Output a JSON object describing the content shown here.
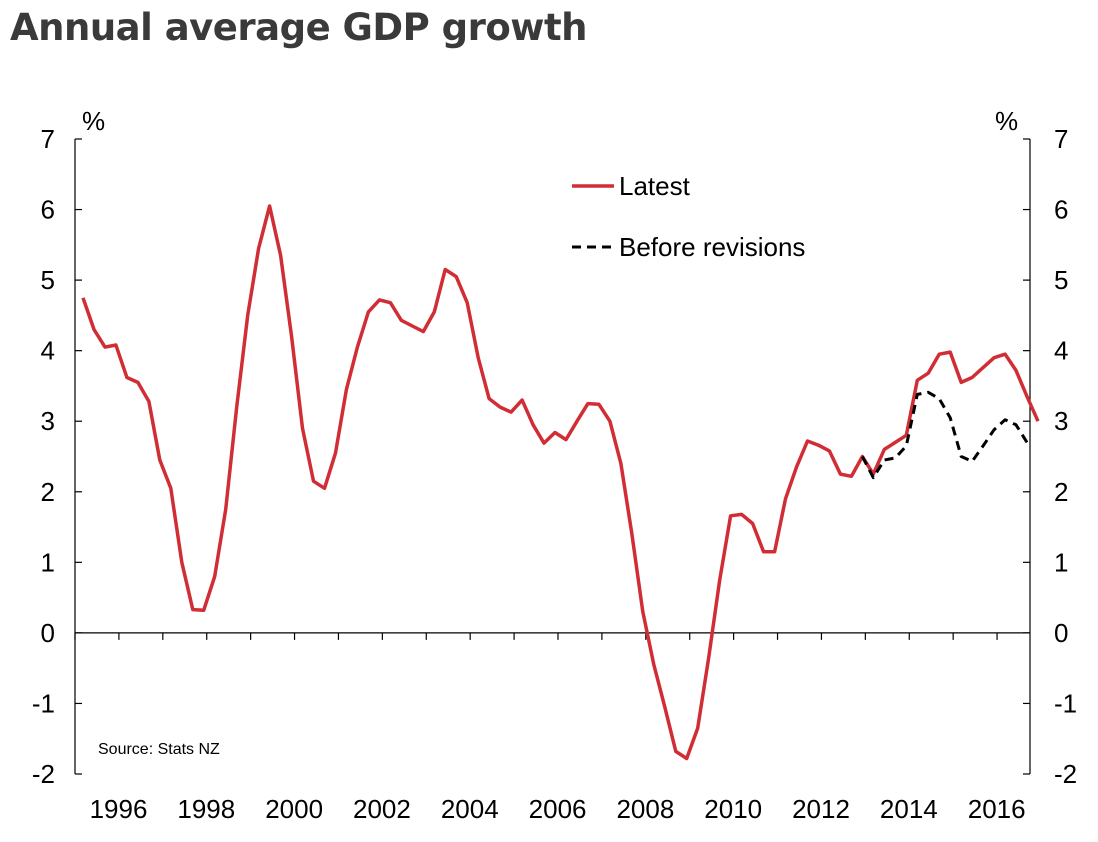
{
  "chart_data": {
    "type": "line",
    "title": "Annual average GDP growth",
    "ylabel_left": "%",
    "ylabel_right": "%",
    "ylim": [
      -2,
      7
    ],
    "yticks": [
      -2,
      -1,
      0,
      1,
      2,
      3,
      4,
      5,
      6,
      7
    ],
    "xlim": [
      1996,
      2017.75
    ],
    "xticks": [
      1996,
      1998,
      2000,
      2002,
      2004,
      2006,
      2008,
      2010,
      2012,
      2014,
      2016
    ],
    "source": "Source: Stats NZ",
    "legend": [
      "Latest",
      "Before revisions"
    ],
    "series": [
      {
        "name": "Latest",
        "color": "#d12d35",
        "style": "solid",
        "points": [
          [
            1996.0,
            4.75
          ],
          [
            1996.25,
            4.3
          ],
          [
            1996.5,
            4.05
          ],
          [
            1996.75,
            4.08
          ],
          [
            1997.0,
            3.62
          ],
          [
            1997.25,
            3.55
          ],
          [
            1997.5,
            3.28
          ],
          [
            1997.75,
            2.45
          ],
          [
            1998.0,
            2.05
          ],
          [
            1998.25,
            1.0
          ],
          [
            1998.5,
            0.33
          ],
          [
            1998.75,
            0.32
          ],
          [
            1999.0,
            0.8
          ],
          [
            1999.25,
            1.75
          ],
          [
            1999.5,
            3.2
          ],
          [
            1999.75,
            4.5
          ],
          [
            2000.0,
            5.45
          ],
          [
            2000.25,
            6.05
          ],
          [
            2000.5,
            5.35
          ],
          [
            2000.75,
            4.2
          ],
          [
            2001.0,
            2.9
          ],
          [
            2001.25,
            2.15
          ],
          [
            2001.5,
            2.05
          ],
          [
            2001.75,
            2.55
          ],
          [
            2002.0,
            3.45
          ],
          [
            2002.25,
            4.05
          ],
          [
            2002.5,
            4.55
          ],
          [
            2002.75,
            4.72
          ],
          [
            2003.0,
            4.68
          ],
          [
            2003.25,
            4.43
          ],
          [
            2003.5,
            4.35
          ],
          [
            2003.75,
            4.27
          ],
          [
            2004.0,
            4.55
          ],
          [
            2004.25,
            5.15
          ],
          [
            2004.5,
            5.05
          ],
          [
            2004.75,
            4.68
          ],
          [
            2005.0,
            3.9
          ],
          [
            2005.25,
            3.32
          ],
          [
            2005.5,
            3.2
          ],
          [
            2005.75,
            3.13
          ],
          [
            2006.0,
            3.3
          ],
          [
            2006.25,
            2.95
          ],
          [
            2006.5,
            2.69
          ],
          [
            2006.75,
            2.84
          ],
          [
            2007.0,
            2.74
          ],
          [
            2007.25,
            3.0
          ],
          [
            2007.5,
            3.25
          ],
          [
            2007.75,
            3.24
          ],
          [
            2008.0,
            3.0
          ],
          [
            2008.25,
            2.4
          ],
          [
            2008.5,
            1.4
          ],
          [
            2008.75,
            0.3
          ],
          [
            2009.0,
            -0.45
          ],
          [
            2009.25,
            -1.05
          ],
          [
            2009.5,
            -1.68
          ],
          [
            2009.75,
            -1.78
          ],
          [
            2010.0,
            -1.35
          ],
          [
            2010.25,
            -0.35
          ],
          [
            2010.5,
            0.75
          ],
          [
            2010.75,
            1.66
          ],
          [
            2011.0,
            1.68
          ],
          [
            2011.25,
            1.55
          ],
          [
            2011.5,
            1.15
          ],
          [
            2011.75,
            1.15
          ],
          [
            2012.0,
            1.9
          ],
          [
            2012.25,
            2.35
          ],
          [
            2012.5,
            2.72
          ],
          [
            2012.75,
            2.66
          ],
          [
            2013.0,
            2.58
          ],
          [
            2013.25,
            2.25
          ],
          [
            2013.5,
            2.22
          ],
          [
            2013.75,
            2.5
          ],
          [
            2014.0,
            2.25
          ],
          [
            2014.25,
            2.6
          ],
          [
            2014.5,
            2.7
          ],
          [
            2014.75,
            2.8
          ],
          [
            2015.0,
            3.58
          ],
          [
            2015.25,
            3.68
          ],
          [
            2015.5,
            3.95
          ],
          [
            2015.75,
            3.98
          ],
          [
            2016.0,
            3.55
          ],
          [
            2016.25,
            3.62
          ],
          [
            2016.5,
            3.76
          ],
          [
            2016.75,
            3.9
          ],
          [
            2017.0,
            3.95
          ],
          [
            2017.25,
            3.72
          ],
          [
            2017.5,
            3.35
          ],
          [
            2017.75,
            3.0
          ]
        ]
      },
      {
        "name": "Before revisions",
        "color": "#000000",
        "style": "dashed",
        "points": [
          [
            2013.75,
            2.5
          ],
          [
            2014.0,
            2.2
          ],
          [
            2014.25,
            2.45
          ],
          [
            2014.5,
            2.48
          ],
          [
            2014.75,
            2.65
          ],
          [
            2015.0,
            3.38
          ],
          [
            2015.25,
            3.41
          ],
          [
            2015.5,
            3.32
          ],
          [
            2015.75,
            3.05
          ],
          [
            2016.0,
            2.5
          ],
          [
            2016.25,
            2.43
          ],
          [
            2016.5,
            2.65
          ],
          [
            2016.75,
            2.88
          ],
          [
            2017.0,
            3.02
          ],
          [
            2017.25,
            2.95
          ],
          [
            2017.5,
            2.7
          ]
        ]
      }
    ]
  }
}
